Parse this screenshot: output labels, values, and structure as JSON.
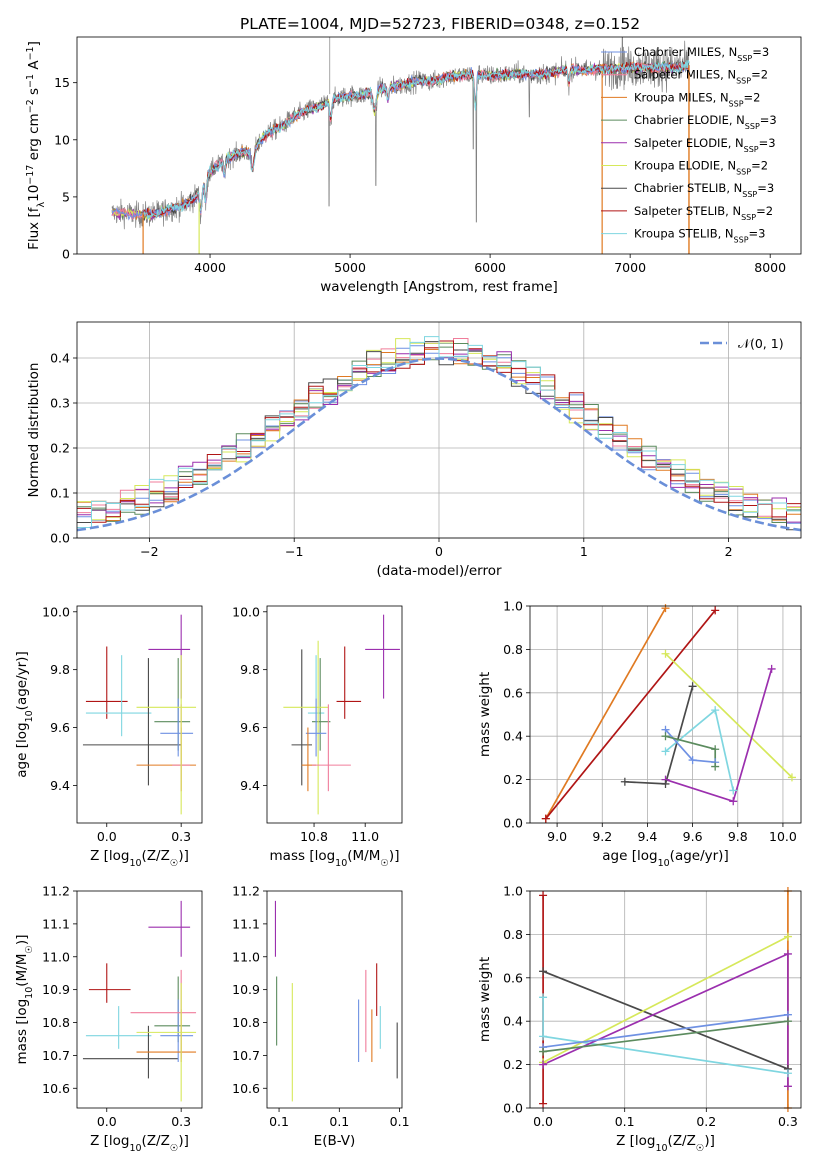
{
  "figure_title": "PLATE=1004, MJD=52723, FIBERID=0348, z=0.152",
  "colors": {
    "Chabrier MILES": "#6f91e3",
    "Salpeter MILES": "#f07d9b",
    "Kroupa MILES": "#e07a22",
    "Chabrier ELODIE": "#5b8b5e",
    "Salpeter ELODIE": "#9b2fae",
    "Kroupa ELODIE": "#d6e85a",
    "Chabrier STELIB": "#4a4a4a",
    "Salpeter STELIB": "#b01515",
    "Kroupa STELIB": "#7fd6e0",
    "data": "#808080",
    "normal": "#6a8fd8"
  },
  "chart_data": [
    {
      "id": "spectrum",
      "type": "line",
      "title": "PLATE=1004, MJD=52723, FIBERID=0348, z=0.152",
      "xlabel": "wavelength [Angstrom, rest frame]",
      "ylabel": "Flux [fλ10⁻¹⁷ erg cm⁻² s⁻¹ A⁻¹]",
      "xlim": [
        3050,
        8220
      ],
      "ylim": [
        0,
        19
      ],
      "xticks": [
        4000,
        5000,
        6000,
        7000,
        8000
      ],
      "yticks": [
        0,
        5,
        10,
        15
      ],
      "grid": false,
      "legend_position": "top-right",
      "legend": [
        {
          "model": "Chabrier MILES",
          "text": "Chabrier MILES, N",
          "n": "3"
        },
        {
          "model": "Salpeter MILES",
          "text": "Salpeter MILES, N",
          "n": "2"
        },
        {
          "model": "Kroupa MILES",
          "text": "Kroupa MILES, N",
          "n": "2"
        },
        {
          "model": "Chabrier ELODIE",
          "text": "Chabrier ELODIE, N",
          "n": "3"
        },
        {
          "model": "Salpeter ELODIE",
          "text": "Salpeter ELODIE, N",
          "n": "3"
        },
        {
          "model": "Kroupa ELODIE",
          "text": "Kroupa ELODIE, N",
          "n": "2"
        },
        {
          "model": "Chabrier STELIB",
          "text": "Chabrier STELIB, N",
          "n": "3"
        },
        {
          "model": "Salpeter STELIB",
          "text": "Salpeter STELIB, N",
          "n": "2"
        },
        {
          "model": "Kroupa STELIB",
          "text": "Kroupa STELIB, N",
          "n": "3"
        }
      ],
      "continuum": [
        [
          3300,
          3.6
        ],
        [
          3400,
          3.6
        ],
        [
          3500,
          3.4
        ],
        [
          3600,
          3.5
        ],
        [
          3700,
          3.9
        ],
        [
          3800,
          4.2
        ],
        [
          3900,
          5.0
        ],
        [
          4000,
          7.2
        ],
        [
          4100,
          8.2
        ],
        [
          4200,
          8.8
        ],
        [
          4300,
          9.0
        ],
        [
          4400,
          10.5
        ],
        [
          4500,
          11.1
        ],
        [
          4600,
          12.0
        ],
        [
          4700,
          12.6
        ],
        [
          4800,
          13.0
        ],
        [
          4900,
          13.6
        ],
        [
          5000,
          13.9
        ],
        [
          5100,
          13.9
        ],
        [
          5200,
          14.5
        ],
        [
          5300,
          14.6
        ],
        [
          5400,
          14.9
        ],
        [
          5500,
          15.2
        ],
        [
          5600,
          15.1
        ],
        [
          5700,
          15.6
        ],
        [
          5800,
          15.6
        ],
        [
          5900,
          15.8
        ],
        [
          6000,
          15.6
        ],
        [
          6100,
          15.7
        ],
        [
          6200,
          15.8
        ],
        [
          6300,
          15.7
        ],
        [
          6400,
          15.8
        ],
        [
          6500,
          16.0
        ],
        [
          6600,
          16.2
        ],
        [
          6700,
          16.1
        ],
        [
          6800,
          16.2
        ],
        [
          6900,
          16.3
        ],
        [
          7000,
          16.3
        ],
        [
          7100,
          16.4
        ],
        [
          7200,
          16.3
        ],
        [
          7300,
          16.3
        ],
        [
          7400,
          16.5
        ]
      ]
    },
    {
      "id": "residuals",
      "type": "step",
      "xlabel": "(data-model)/error",
      "ylabel": "Normed distribution",
      "xlim": [
        -2.5,
        2.5
      ],
      "ylim": [
        0,
        0.48
      ],
      "xticks": [
        -2,
        -1,
        0,
        1,
        2
      ],
      "yticks": [
        0.0,
        0.1,
        0.2,
        0.3,
        0.4
      ],
      "grid": true,
      "legend_position": "top-right",
      "normal_label": "𝒩(0, 1)"
    },
    {
      "id": "age_vs_Z",
      "type": "errorbar",
      "xlabel": "Z [log10(Z/Z☉)]",
      "ylabel": "age  [log10(age/yr)]",
      "xlim": [
        -0.1,
        0.32
      ],
      "ylim": [
        9.27,
        10.02
      ],
      "xticks": [
        0.0,
        0.25
      ],
      "yticks": [
        9.4,
        9.6,
        9.8,
        10.0
      ],
      "points": [
        {
          "model": "Salpeter STELIB",
          "x": 0.0,
          "xlo": -0.07,
          "xhi": 0.07,
          "y": 9.69,
          "ylo": 9.63,
          "yhi": 9.88
        },
        {
          "model": "Kroupa STELIB",
          "x": 0.05,
          "xlo": -0.07,
          "xhi": 0.15,
          "y": 9.65,
          "ylo": 9.57,
          "yhi": 9.85
        },
        {
          "model": "Chabrier STELIB",
          "x": 0.14,
          "xlo": -0.08,
          "xhi": 0.25,
          "y": 9.54,
          "ylo": 9.4,
          "yhi": 9.84
        },
        {
          "model": "Salpeter ELODIE",
          "x": 0.25,
          "xlo": 0.14,
          "xhi": 0.28,
          "y": 9.87,
          "ylo": 9.7,
          "yhi": 9.99
        },
        {
          "model": "Chabrier ELODIE",
          "x": 0.24,
          "xlo": 0.16,
          "xhi": 0.28,
          "y": 9.62,
          "ylo": 9.52,
          "yhi": 9.84
        },
        {
          "model": "Chabrier MILES",
          "x": 0.24,
          "xlo": 0.18,
          "xhi": 0.29,
          "y": 9.58,
          "ylo": 9.5,
          "yhi": 9.7
        },
        {
          "model": "Kroupa MILES",
          "x": 0.25,
          "xlo": 0.1,
          "xhi": 0.3,
          "y": 9.47,
          "ylo": 9.38,
          "yhi": 9.6
        },
        {
          "model": "Salpeter MILES",
          "x": 0.25,
          "xlo": 0.22,
          "xhi": 0.28,
          "y": 9.47,
          "ylo": 9.38,
          "yhi": 9.68
        },
        {
          "model": "Kroupa ELODIE",
          "x": 0.25,
          "xlo": 0.1,
          "xhi": 0.3,
          "y": 9.67,
          "ylo": 9.3,
          "yhi": 9.85
        }
      ]
    },
    {
      "id": "age_vs_mass",
      "type": "errorbar",
      "xlabel": "mass [log10(M/M☉)]",
      "ylabel": "",
      "xlim": [
        10.52,
        11.18
      ],
      "ylim": [
        9.27,
        10.02
      ],
      "xticks": [
        10.75,
        11.0
      ],
      "yticks": [
        9.4,
        9.6,
        9.8,
        10.0
      ],
      "points": [
        {
          "model": "Salpeter ELODIE",
          "x": 11.09,
          "xlo": 11.0,
          "xhi": 11.17,
          "y": 9.87,
          "ylo": 9.7,
          "yhi": 9.99
        },
        {
          "model": "Salpeter STELIB",
          "x": 10.9,
          "xlo": 10.86,
          "xhi": 10.98,
          "y": 9.69,
          "ylo": 9.63,
          "yhi": 9.88
        },
        {
          "model": "Kroupa STELIB",
          "x": 10.76,
          "xlo": 10.72,
          "xhi": 10.8,
          "y": 9.65,
          "ylo": 9.57,
          "yhi": 9.85
        },
        {
          "model": "Chabrier STELIB",
          "x": 10.69,
          "xlo": 10.64,
          "xhi": 10.74,
          "y": 9.54,
          "ylo": 9.4,
          "yhi": 9.87
        },
        {
          "model": "Chabrier ELODIE",
          "x": 10.78,
          "xlo": 10.74,
          "xhi": 10.83,
          "y": 9.62,
          "ylo": 9.52,
          "yhi": 9.84
        },
        {
          "model": "Kroupa ELODIE",
          "x": 10.77,
          "xlo": 10.6,
          "xhi": 10.82,
          "y": 9.67,
          "ylo": 9.3,
          "yhi": 9.9
        },
        {
          "model": "Chabrier MILES",
          "x": 10.76,
          "xlo": 10.71,
          "xhi": 10.81,
          "y": 9.58,
          "ylo": 9.5,
          "yhi": 9.7
        },
        {
          "model": "Kroupa MILES",
          "x": 10.72,
          "xlo": 10.69,
          "xhi": 10.76,
          "y": 9.47,
          "ylo": 9.38,
          "yhi": 9.6
        },
        {
          "model": "Salpeter MILES",
          "x": 10.82,
          "xlo": 10.74,
          "xhi": 10.93,
          "y": 9.47,
          "ylo": 9.38,
          "yhi": 9.68
        }
      ]
    },
    {
      "id": "weight_vs_age",
      "type": "line",
      "xlabel": "age  [log10(age/yr)]",
      "ylabel": "mass weight",
      "xlim": [
        8.88,
        10.08
      ],
      "ylim": [
        0.0,
        1.0
      ],
      "xticks": [
        9.0,
        9.2,
        9.4,
        9.6,
        9.8,
        10.0
      ],
      "yticks": [
        0.0,
        0.2,
        0.4,
        0.6,
        0.8,
        1.0
      ],
      "grid": true,
      "series": [
        {
          "model": "Kroupa MILES",
          "points": [
            [
              8.95,
              0.02
            ],
            [
              9.48,
              0.99
            ]
          ]
        },
        {
          "model": "Salpeter STELIB",
          "points": [
            [
              8.95,
              0.02
            ],
            [
              9.7,
              0.98
            ]
          ]
        },
        {
          "model": "Kroupa ELODIE",
          "points": [
            [
              9.48,
              0.78
            ],
            [
              10.04,
              0.21
            ]
          ]
        },
        {
          "model": "Salpeter ELODIE",
          "points": [
            [
              9.48,
              0.2
            ],
            [
              9.78,
              0.1
            ],
            [
              9.95,
              0.71
            ]
          ]
        },
        {
          "model": "Chabrier STELIB",
          "points": [
            [
              9.3,
              0.19
            ],
            [
              9.48,
              0.18
            ],
            [
              9.6,
              0.63
            ]
          ]
        },
        {
          "model": "Kroupa STELIB",
          "points": [
            [
              9.48,
              0.33
            ],
            [
              9.7,
              0.52
            ],
            [
              9.78,
              0.15
            ]
          ]
        },
        {
          "model": "Chabrier MILES",
          "points": [
            [
              9.48,
              0.43
            ],
            [
              9.6,
              0.29
            ],
            [
              9.7,
              0.28
            ]
          ]
        },
        {
          "model": "Chabrier ELODIE",
          "points": [
            [
              9.48,
              0.4
            ],
            [
              9.7,
              0.34
            ],
            [
              9.7,
              0.26
            ]
          ]
        }
      ]
    },
    {
      "id": "mass_vs_Z",
      "type": "errorbar",
      "xlabel": "Z [log10(Z/Z☉)]",
      "ylabel": "mass [log10(M/M☉)]",
      "xlim": [
        -0.1,
        0.32
      ],
      "ylim": [
        10.54,
        11.2
      ],
      "xticks": [
        0.0,
        0.25
      ],
      "yticks": [
        10.6,
        10.7,
        10.8,
        10.9,
        11.0,
        11.1,
        11.2
      ],
      "points": [
        {
          "model": "Salpeter STELIB",
          "x": 0.0,
          "xlo": -0.06,
          "xhi": 0.08,
          "y": 10.9,
          "ylo": 10.86,
          "yhi": 10.98
        },
        {
          "model": "Kroupa STELIB",
          "x": 0.04,
          "xlo": -0.07,
          "xhi": 0.15,
          "y": 10.76,
          "ylo": 10.72,
          "yhi": 10.85
        },
        {
          "model": "Chabrier STELIB",
          "x": 0.14,
          "xlo": -0.08,
          "xhi": 0.24,
          "y": 10.69,
          "ylo": 10.63,
          "yhi": 10.79
        },
        {
          "model": "Salpeter ELODIE",
          "x": 0.25,
          "xlo": 0.14,
          "xhi": 0.28,
          "y": 11.09,
          "ylo": 11.0,
          "yhi": 11.17
        },
        {
          "model": "Chabrier ELODIE",
          "x": 0.24,
          "xlo": 0.16,
          "xhi": 0.28,
          "y": 10.79,
          "ylo": 10.74,
          "yhi": 10.94
        },
        {
          "model": "Chabrier MILES",
          "x": 0.24,
          "xlo": 0.18,
          "xhi": 0.29,
          "y": 10.76,
          "ylo": 10.68,
          "yhi": 10.87
        },
        {
          "model": "Kroupa MILES",
          "x": 0.25,
          "xlo": 0.1,
          "xhi": 0.3,
          "y": 10.71,
          "ylo": 10.68,
          "yhi": 10.84
        },
        {
          "model": "Salpeter MILES",
          "x": 0.25,
          "xlo": 0.08,
          "xhi": 0.3,
          "y": 10.83,
          "ylo": 10.69,
          "yhi": 10.96
        },
        {
          "model": "Kroupa ELODIE",
          "x": 0.25,
          "xlo": 0.1,
          "xhi": 0.3,
          "y": 10.77,
          "ylo": 10.56,
          "yhi": 10.92
        }
      ]
    },
    {
      "id": "mass_vs_ebv",
      "type": "errorbar",
      "xlabel": "E(B-V)",
      "ylabel": "",
      "xlim": [
        0.04,
        0.152
      ],
      "ylim": [
        10.54,
        11.2
      ],
      "xticks": [
        0.05,
        0.1,
        0.15
      ],
      "yticks": [
        10.6,
        10.7,
        10.8,
        10.9,
        11.0,
        11.1,
        11.2
      ],
      "points": [
        {
          "model": "Salpeter ELODIE",
          "x": 0.047,
          "y": 11.09,
          "ylo": 11.0,
          "yhi": 11.17
        },
        {
          "model": "Chabrier ELODIE",
          "x": 0.048,
          "y": 10.83,
          "ylo": 10.73,
          "yhi": 10.94
        },
        {
          "model": "Kroupa ELODIE",
          "x": 0.061,
          "y": 10.72,
          "ylo": 10.56,
          "yhi": 10.92
        },
        {
          "model": "Chabrier MILES",
          "x": 0.116,
          "y": 10.77,
          "ylo": 10.68,
          "yhi": 10.87
        },
        {
          "model": "Salpeter MILES",
          "x": 0.122,
          "y": 10.83,
          "ylo": 10.71,
          "yhi": 10.96
        },
        {
          "model": "Kroupa MILES",
          "x": 0.127,
          "y": 10.76,
          "ylo": 10.68,
          "yhi": 10.84
        },
        {
          "model": "Salpeter STELIB",
          "x": 0.131,
          "y": 10.9,
          "ylo": 10.82,
          "yhi": 10.98
        },
        {
          "model": "Kroupa STELIB",
          "x": 0.134,
          "y": 10.79,
          "ylo": 10.72,
          "yhi": 10.85
        },
        {
          "model": "Chabrier STELIB",
          "x": 0.148,
          "y": 10.71,
          "ylo": 10.63,
          "yhi": 10.8
        }
      ]
    },
    {
      "id": "weight_vs_Z",
      "type": "line",
      "xlabel": "Z [log10(Z/Z☉)]",
      "ylabel": "mass weight",
      "xlim": [
        -0.016,
        0.316
      ],
      "ylim": [
        0.0,
        1.0
      ],
      "xticks": [
        0.0,
        0.1,
        0.2,
        0.3
      ],
      "yticks": [
        0.0,
        0.2,
        0.4,
        0.6,
        0.8,
        1.0
      ],
      "grid": true,
      "series": [
        {
          "model": "Kroupa MILES",
          "points": [
            [
              0.3,
              0.0
            ],
            [
              0.3,
              1.0
            ]
          ]
        },
        {
          "model": "Salpeter STELIB",
          "points": [
            [
              0.0,
              0.02
            ],
            [
              0.0,
              0.98
            ]
          ]
        },
        {
          "model": "Chabrier STELIB",
          "points": [
            [
              0.0,
              0.63
            ],
            [
              0.3,
              0.18
            ]
          ]
        },
        {
          "model": "Kroupa STELIB",
          "points": [
            [
              0.0,
              0.51
            ],
            [
              0.0,
              0.33
            ],
            [
              0.3,
              0.16
            ]
          ]
        },
        {
          "model": "Kroupa ELODIE",
          "points": [
            [
              0.0,
              0.21
            ],
            [
              0.3,
              0.79
            ]
          ]
        },
        {
          "model": "Salpeter ELODIE",
          "points": [
            [
              0.0,
              0.2
            ],
            [
              0.3,
              0.71
            ],
            [
              0.3,
              0.1
            ]
          ]
        },
        {
          "model": "Chabrier MILES",
          "points": [
            [
              0.0,
              0.28
            ],
            [
              0.3,
              0.43
            ]
          ]
        },
        {
          "model": "Chabrier ELODIE",
          "points": [
            [
              0.0,
              0.26
            ],
            [
              0.3,
              0.4
            ]
          ]
        }
      ]
    }
  ]
}
